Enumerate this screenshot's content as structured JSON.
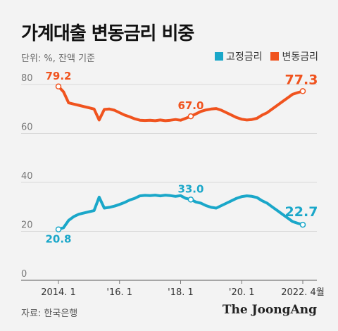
{
  "title": "가계대출 변동금리 비중",
  "unit": "단위: %, 잔액 기준",
  "source": "자료: 한국은행",
  "brand": "The JoongAng",
  "colors": {
    "fixed": "#1aa7c9",
    "variable": "#f0531e",
    "grid": "#d8d8d8",
    "axis": "#777777"
  },
  "chart_data": {
    "type": "line",
    "ylim": [
      0,
      80
    ],
    "yticks": [
      0,
      20,
      40,
      60,
      80
    ],
    "xticks": [
      "2014. 1",
      "'16. 1",
      "'18. 1",
      "'20. 1",
      "2022. 4월"
    ],
    "series": [
      {
        "name": "고정금리",
        "color": "#1aa7c9",
        "values": [
          20.8,
          21.5,
          24.5,
          26,
          27,
          27.5,
          28,
          28.5,
          34,
          29.5,
          29.8,
          30.3,
          31,
          31.8,
          32.8,
          33.5,
          34.5,
          34.7,
          34.6,
          34.8,
          34.5,
          34.8,
          34.6,
          34.3,
          34.6,
          33.5,
          33,
          32,
          31.5,
          30.5,
          29.8,
          29.5,
          30.5,
          31.5,
          32.5,
          33.5,
          34.2,
          34.5,
          34.3,
          33.8,
          32.5,
          31.5,
          30,
          28.5,
          27,
          25.5,
          24,
          23.3,
          22.7
        ],
        "labels": [
          {
            "index": 0,
            "text": "20.8"
          },
          {
            "index": 26,
            "text": "33.0"
          },
          {
            "index": 48,
            "text": "22.7"
          }
        ]
      },
      {
        "name": "변동금리",
        "color": "#f0531e",
        "values": [
          79.2,
          77,
          72.5,
          72,
          71.5,
          71,
          70.5,
          70,
          65.5,
          69.8,
          70,
          69.5,
          68.5,
          67.5,
          66.8,
          66,
          65.4,
          65.3,
          65.4,
          65.2,
          65.5,
          65.2,
          65.4,
          65.7,
          65.4,
          66.2,
          67,
          68,
          69,
          69.6,
          70,
          70.2,
          69.5,
          68.5,
          67.5,
          66.5,
          65.8,
          65.5,
          65.7,
          66.2,
          67.5,
          68.5,
          70,
          71.5,
          73,
          74.5,
          76,
          76.7,
          77.3
        ],
        "labels": [
          {
            "index": 0,
            "text": "79.2"
          },
          {
            "index": 26,
            "text": "67.0"
          },
          {
            "index": 48,
            "text": "77.3"
          }
        ]
      }
    ]
  }
}
